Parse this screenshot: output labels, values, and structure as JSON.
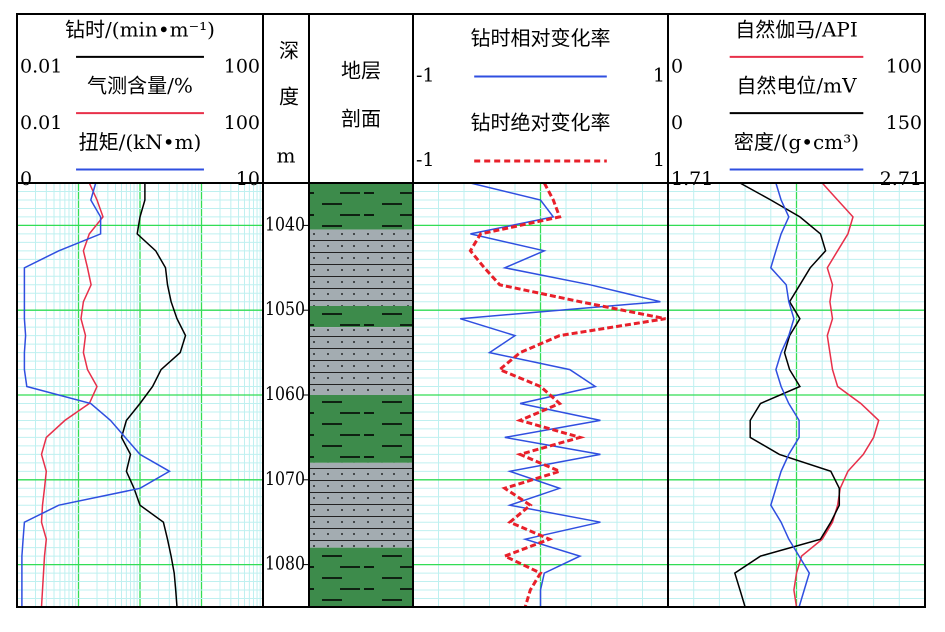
{
  "chart_data": [
    {
      "type": "line",
      "xgrid": "log",
      "y": [
        1035,
        1037,
        1039,
        1041,
        1043,
        1045,
        1047,
        1049,
        1051,
        1053,
        1055,
        1057,
        1059,
        1061,
        1063,
        1065,
        1067,
        1069,
        1071,
        1073,
        1075,
        1077,
        1079,
        1081,
        1083,
        1085
      ],
      "series": [
        {
          "name": "钻时/(min•m⁻¹)",
          "color": "#000000",
          "xscale": "log",
          "xlim": [
            0.01,
            100
          ],
          "xticks": [
            0.01,
            100
          ],
          "values": [
            1.2,
            1.2,
            1.0,
            0.9,
            1.8,
            2.6,
            2.8,
            3.2,
            4.0,
            5.5,
            4.5,
            2.2,
            1.6,
            1.0,
            0.6,
            0.5,
            0.7,
            0.6,
            0.8,
            1.0,
            2.4,
            2.8,
            3.2,
            3.6,
            3.8,
            4.0
          ]
        },
        {
          "name": "气测含量/%",
          "color": "#e8304a",
          "xscale": "log",
          "xlim": [
            0.01,
            100
          ],
          "xticks": [
            0.01,
            100
          ],
          "values": [
            0.15,
            0.2,
            0.25,
            0.15,
            0.12,
            0.14,
            0.16,
            0.12,
            0.11,
            0.13,
            0.12,
            0.14,
            0.2,
            0.15,
            0.06,
            0.03,
            0.025,
            0.03,
            0.028,
            0.026,
            0.025,
            0.03,
            0.028,
            0.027,
            0.026,
            0.025
          ]
        },
        {
          "name": "扭矩/(kN•m)",
          "color": "#2f4fe0",
          "xscale": "linear",
          "xlim": [
            0,
            10
          ],
          "xticks": [
            0,
            10
          ],
          "values": [
            3.2,
            3.0,
            3.4,
            3.4,
            1.7,
            0.3,
            0.3,
            0.3,
            0.3,
            0.35,
            0.3,
            0.3,
            0.4,
            3.0,
            3.8,
            4.4,
            5.0,
            6.2,
            5.0,
            1.7,
            0.3,
            0.25,
            0.2,
            0.2,
            0.2,
            0.2
          ]
        }
      ]
    },
    {
      "type": "depth",
      "title": "深度",
      "unit": "m",
      "ylim": [
        1035,
        1085
      ],
      "yticks": [
        1040,
        1050,
        1060,
        1070,
        1080
      ]
    },
    {
      "type": "lithology",
      "title": [
        "地层",
        "剖面"
      ],
      "layers": [
        {
          "top": 1035,
          "bottom": 1040.5,
          "color": "#3d8b4b"
        },
        {
          "top": 1040.5,
          "bottom": 1049.5,
          "color": "#a3acb1"
        },
        {
          "top": 1049.5,
          "bottom": 1052,
          "color": "#3d8b4b"
        },
        {
          "top": 1052,
          "bottom": 1060,
          "color": "#a3acb1"
        },
        {
          "top": 1060,
          "bottom": 1068,
          "color": "#3d8b4b"
        },
        {
          "top": 1068,
          "bottom": 1078,
          "color": "#a3acb1"
        },
        {
          "top": 1078,
          "bottom": 1085,
          "color": "#3d8b4b"
        }
      ]
    },
    {
      "type": "line",
      "xgrid": "linear",
      "y": [
        1035,
        1037,
        1039,
        1041,
        1043,
        1045,
        1047,
        1049,
        1051,
        1053,
        1055,
        1057,
        1059,
        1061,
        1063,
        1065,
        1067,
        1069,
        1071,
        1073,
        1075,
        1077,
        1079,
        1081,
        1083,
        1085
      ],
      "series": [
        {
          "name": "钻时相对变化率",
          "color": "#2f4fe0",
          "xscale": "linear",
          "xlim": [
            -1,
            1
          ],
          "xticks": [
            -1,
            1
          ],
          "values": [
            -0.55,
            0,
            0.1,
            -0.55,
            0.03,
            -0.28,
            0.39,
            0.94,
            -0.63,
            -0.2,
            -0.4,
            0.23,
            0.43,
            -0.16,
            0.47,
            -0.28,
            0.47,
            -0.24,
            0.15,
            -0.24,
            0.47,
            -0.12,
            0.31,
            0.03,
            0,
            0
          ]
        },
        {
          "name": "钻时绝对变化率",
          "color": "#e8202a",
          "dash": true,
          "xscale": "linear",
          "xlim": [
            -1,
            1
          ],
          "xticks": [
            -1,
            1
          ],
          "values": [
            0.03,
            0.1,
            0.15,
            -0.47,
            -0.55,
            -0.44,
            -0.32,
            0.31,
            0.98,
            0.15,
            -0.16,
            -0.32,
            0,
            0.15,
            -0.16,
            0.31,
            -0.16,
            0.15,
            -0.28,
            -0.08,
            -0.24,
            0.07,
            -0.28,
            0,
            -0.08,
            -0.12
          ]
        }
      ]
    },
    {
      "type": "line",
      "xgrid": "linear",
      "y": [
        1035,
        1037,
        1039,
        1041,
        1043,
        1045,
        1047,
        1049,
        1051,
        1053,
        1055,
        1057,
        1059,
        1061,
        1063,
        1065,
        1067,
        1069,
        1071,
        1073,
        1075,
        1077,
        1079,
        1081,
        1083,
        1085
      ],
      "series": [
        {
          "name": "自然伽马/API",
          "color": "#e8304a",
          "xscale": "linear",
          "xlim": [
            0,
            100
          ],
          "xticks": [
            0,
            100
          ],
          "values": [
            60,
            66,
            72,
            70,
            66,
            62,
            64,
            63,
            64,
            62,
            63,
            64,
            66,
            75,
            82,
            80,
            76,
            70,
            67,
            66,
            64,
            60,
            52,
            50,
            49,
            50
          ]
        },
        {
          "name": "自然电位/mV",
          "color": "#000000",
          "xscale": "linear",
          "xlim": [
            0,
            150
          ],
          "xticks": [
            0,
            150
          ],
          "values": [
            42,
            60,
            77,
            89,
            92,
            83,
            77,
            71,
            77,
            71,
            68,
            71,
            77,
            54,
            48,
            48,
            65,
            95,
            100,
            100,
            95,
            89,
            54,
            39,
            42,
            45
          ]
        },
        {
          "name": "密度/(g•cm³)",
          "color": "#2f4fe0",
          "xscale": "linear",
          "xlim": [
            1.71,
            2.71
          ],
          "xticks": [
            1.71,
            2.71
          ],
          "values": [
            2.13,
            2.15,
            2.18,
            2.15,
            2.13,
            2.11,
            2.17,
            2.18,
            2.2,
            2.18,
            2.15,
            2.13,
            2.15,
            2.18,
            2.22,
            2.22,
            2.18,
            2.15,
            2.13,
            2.11,
            2.15,
            2.18,
            2.22,
            2.26,
            2.24,
            2.22
          ]
        }
      ]
    }
  ]
}
